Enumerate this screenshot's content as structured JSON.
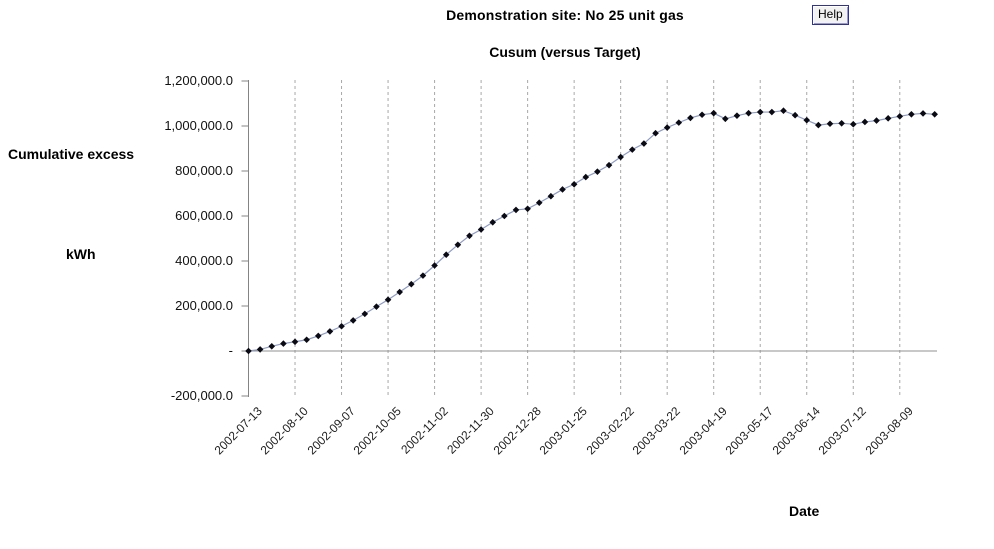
{
  "header": {
    "title": "Demonstration site: No 25 unit gas",
    "subtitle": "Cusum (versus Target)",
    "help_label": "Help"
  },
  "axis_labels": {
    "y_line1": "Cumulative excess",
    "y_line2": "kWh",
    "x_label": "Date"
  },
  "colors": {
    "line": "#8e9bc3",
    "marker": "#0a0a14",
    "grid": "#a8a8a8",
    "axis": "#848484",
    "zero_line": "#909090",
    "help_border": "#31319c"
  },
  "chart_data": {
    "type": "line",
    "title": "Cusum (versus Target)",
    "xlabel": "Date",
    "ylabel": "Cumulative excess kWh",
    "marker": "diamond",
    "grid": "vertical-dashed",
    "ylim": [
      -200000,
      1200000
    ],
    "y_ticks": [
      {
        "label": "1,200,000.0",
        "value": 1200000
      },
      {
        "label": "1,000,000.0",
        "value": 1000000
      },
      {
        "label": "800,000.0",
        "value": 800000
      },
      {
        "label": "600,000.0",
        "value": 600000
      },
      {
        "label": "400,000.0",
        "value": 400000
      },
      {
        "label": "200,000.0",
        "value": 200000
      },
      {
        "label": "-",
        "value": 0
      },
      {
        "label": "-200,000.0",
        "value": -200000
      }
    ],
    "x_tick_labels": [
      "2002-07-13",
      "2002-08-10",
      "2002-09-07",
      "2002-10-05",
      "2002-11-02",
      "2002-11-30",
      "2002-12-28",
      "2003-01-25",
      "2003-02-22",
      "2003-03-22",
      "2003-04-19",
      "2003-05-17",
      "2003-06-14",
      "2003-07-12",
      "2003-08-09"
    ],
    "x_tick_week_step": 4,
    "x": [
      "2002-07-13",
      "2002-07-20",
      "2002-07-27",
      "2002-08-03",
      "2002-08-10",
      "2002-08-17",
      "2002-08-24",
      "2002-08-31",
      "2002-09-07",
      "2002-09-14",
      "2002-09-21",
      "2002-09-28",
      "2002-10-05",
      "2002-10-12",
      "2002-10-19",
      "2002-10-26",
      "2002-11-02",
      "2002-11-09",
      "2002-11-16",
      "2002-11-23",
      "2002-11-30",
      "2002-12-07",
      "2002-12-14",
      "2002-12-21",
      "2002-12-28",
      "2003-01-04",
      "2003-01-11",
      "2003-01-18",
      "2003-01-25",
      "2003-02-01",
      "2003-02-08",
      "2003-02-15",
      "2003-02-22",
      "2003-03-01",
      "2003-03-08",
      "2003-03-15",
      "2003-03-22",
      "2003-03-29",
      "2003-04-05",
      "2003-04-12",
      "2003-04-19",
      "2003-04-26",
      "2003-05-03",
      "2003-05-10",
      "2003-05-17",
      "2003-05-24",
      "2003-05-31",
      "2003-06-07",
      "2003-06-14",
      "2003-06-21",
      "2003-06-28",
      "2003-07-05",
      "2003-07-12",
      "2003-07-19",
      "2003-07-26",
      "2003-08-02",
      "2003-08-09",
      "2003-08-16",
      "2003-08-23",
      "2003-08-30"
    ],
    "values": [
      0,
      7000,
      21000,
      33000,
      41000,
      50000,
      67000,
      87000,
      110000,
      136000,
      165000,
      197000,
      228000,
      262000,
      297000,
      335000,
      380000,
      428000,
      472000,
      512000,
      540000,
      572000,
      600000,
      627000,
      632000,
      659000,
      688000,
      718000,
      741000,
      773000,
      797000,
      826000,
      862000,
      895000,
      922000,
      968000,
      993000,
      1015000,
      1036000,
      1050000,
      1057000,
      1032000,
      1046000,
      1057000,
      1062000,
      1062000,
      1068000,
      1048000,
      1026000,
      1004000,
      1010000,
      1012000,
      1008000,
      1018000,
      1024000,
      1034000,
      1043000,
      1052000,
      1056000,
      1052000
    ]
  }
}
